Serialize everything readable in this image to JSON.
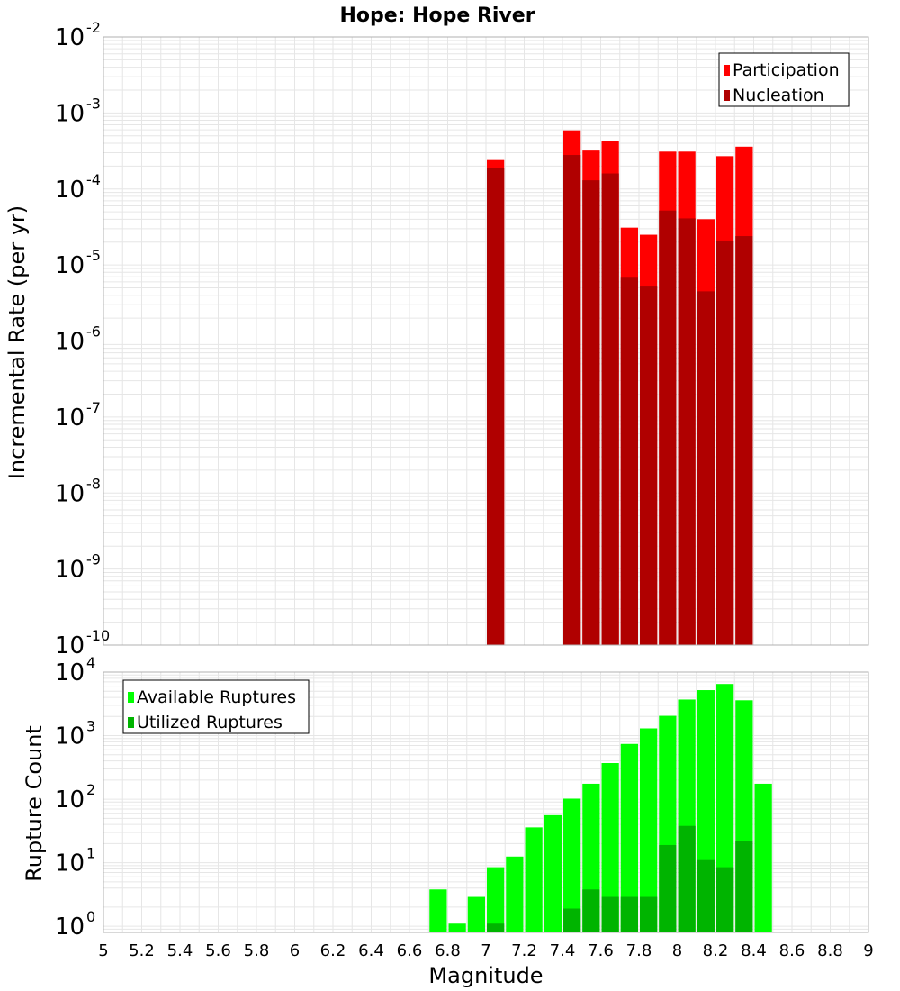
{
  "title": "Hope: Hope River",
  "colors": {
    "participation": "#ff0000",
    "nucleation": "#b00000",
    "available": "#00ff00",
    "utilized": "#00b400",
    "grid": "#e6e6e6",
    "frame": "#b0b0b0"
  },
  "chart_data": [
    {
      "type": "bar",
      "panel": "top",
      "ylabel": "Incremental Rate (per yr)",
      "yscale": "log",
      "ylim": [
        1e-10,
        0.01
      ],
      "y_tick_labels": [
        {
          "base": "10",
          "exp": "-10"
        },
        {
          "base": "10",
          "exp": "-9"
        },
        {
          "base": "10",
          "exp": "-8"
        },
        {
          "base": "10",
          "exp": "-7"
        },
        {
          "base": "10",
          "exp": "-6"
        },
        {
          "base": "10",
          "exp": "-5"
        },
        {
          "base": "10",
          "exp": "-4"
        },
        {
          "base": "10",
          "exp": "-3"
        },
        {
          "base": "10",
          "exp": "-2"
        }
      ],
      "legend": {
        "placement": "top-right"
      },
      "x": [
        7.05,
        7.45,
        7.55,
        7.65,
        7.75,
        7.85,
        7.95,
        8.05,
        8.15,
        8.25,
        8.35
      ],
      "series": [
        {
          "name": "Participation",
          "color": "#ff0000",
          "values": [
            0.00024,
            0.00059,
            0.00032,
            0.00043,
            3.1e-05,
            2.5e-05,
            0.00031,
            0.00031,
            4e-05,
            0.00027,
            0.00036
          ]
        },
        {
          "name": "Nucleation",
          "color": "#b00000",
          "values": [
            0.00019,
            0.00028,
            0.00013,
            0.00016,
            6.8e-06,
            5.2e-06,
            5.2e-05,
            4.1e-05,
            4.5e-06,
            2.1e-05,
            2.4e-05
          ]
        }
      ]
    },
    {
      "type": "bar",
      "panel": "bottom",
      "xlabel": "Magnitude",
      "ylabel": "Rupture Count",
      "yscale": "log",
      "ylim": [
        0.8,
        10000
      ],
      "y_tick_labels": [
        {
          "base": "10",
          "exp": "0",
          "value": 1
        },
        {
          "base": "10",
          "exp": "1",
          "value": 10
        },
        {
          "base": "10",
          "exp": "2",
          "value": 100
        },
        {
          "base": "10",
          "exp": "3",
          "value": 1000
        },
        {
          "base": "10",
          "exp": "4",
          "value": 10000
        }
      ],
      "xlim": [
        5,
        9
      ],
      "x_tick_labels": [
        "5",
        "5.2",
        "5.4",
        "5.6",
        "5.8",
        "6",
        "6.2",
        "6.4",
        "6.6",
        "6.8",
        "7",
        "7.2",
        "7.4",
        "7.6",
        "7.8",
        "8",
        "8.2",
        "8.4",
        "8.6",
        "8.8",
        "9"
      ],
      "legend": {
        "placement": "top-left"
      },
      "x": [
        6.75,
        6.85,
        6.95,
        7.05,
        7.15,
        7.25,
        7.35,
        7.45,
        7.55,
        7.65,
        7.75,
        7.85,
        7.95,
        8.05,
        8.15,
        8.25,
        8.35,
        8.45
      ],
      "series": [
        {
          "name": "Available Ruptures",
          "color": "#00ff00",
          "values": [
            3.8,
            1.1,
            2.9,
            8.5,
            12.5,
            36,
            56,
            102,
            175,
            370,
            740,
            1300,
            2050,
            3700,
            5200,
            6500,
            3600,
            175
          ]
        },
        {
          "name": "Utilized Ruptures",
          "color": "#00b400",
          "values": [
            null,
            null,
            null,
            1.1,
            null,
            null,
            null,
            1.9,
            3.8,
            2.9,
            2.9,
            2.9,
            19,
            38,
            11,
            8.5,
            22,
            null
          ]
        }
      ]
    }
  ]
}
